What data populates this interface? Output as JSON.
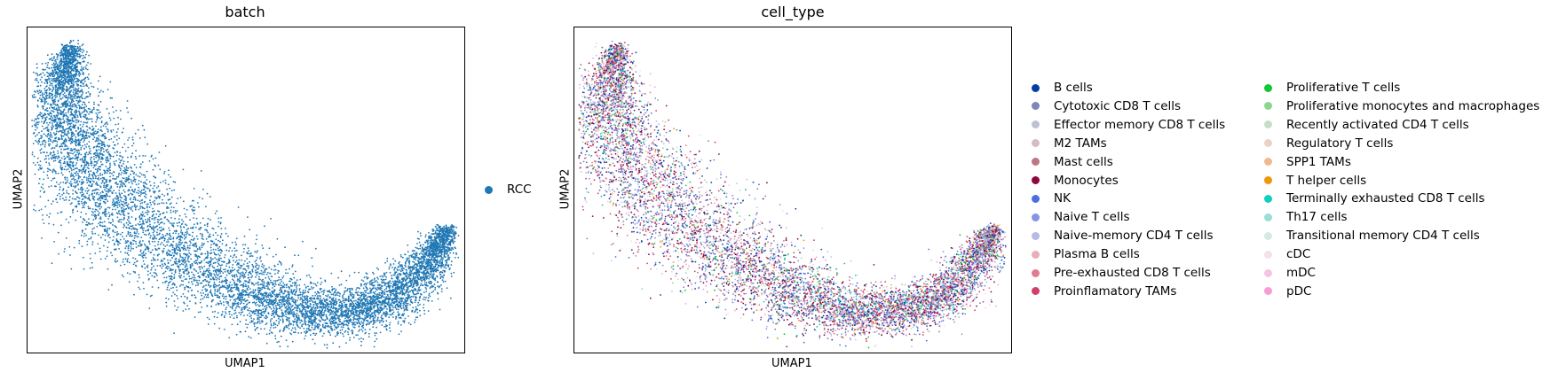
{
  "panels": [
    {
      "title": "batch",
      "xlabel": "UMAP1",
      "ylabel": "UMAP2",
      "legend": [
        {
          "label": "RCC",
          "color": "#1f77b4"
        }
      ]
    },
    {
      "title": "cell_type",
      "xlabel": "UMAP1",
      "ylabel": "UMAP2",
      "legend": [
        {
          "label": "B cells",
          "color": "#023fa5"
        },
        {
          "label": "Cytotoxic CD8 T cells",
          "color": "#7d87b9"
        },
        {
          "label": "Effector memory CD8 T cells",
          "color": "#bec1d4"
        },
        {
          "label": "M2 TAMs",
          "color": "#d6bcc0"
        },
        {
          "label": "Mast cells",
          "color": "#bb7784"
        },
        {
          "label": "Monocytes",
          "color": "#8e063b"
        },
        {
          "label": "NK",
          "color": "#4a6fe3"
        },
        {
          "label": "Naive T cells",
          "color": "#8595e1"
        },
        {
          "label": "Naive-memory CD4 T cells",
          "color": "#b5bbe3"
        },
        {
          "label": "Plasma B cells",
          "color": "#e6afb9"
        },
        {
          "label": "Pre-exhausted CD8 T cells",
          "color": "#e07b91"
        },
        {
          "label": "Proinflamatory TAMs",
          "color": "#d33f6a"
        },
        {
          "label": "Proliferative T cells",
          "color": "#11c638"
        },
        {
          "label": "Proliferative monocytes and macrophages",
          "color": "#8dd593"
        },
        {
          "label": "Recently activated CD4 T cells",
          "color": "#c6dec7"
        },
        {
          "label": "Regulatory T cells",
          "color": "#ead3c6"
        },
        {
          "label": "SPP1 TAMs",
          "color": "#f0b98d"
        },
        {
          "label": "T helper cells",
          "color": "#ef9708"
        },
        {
          "label": "Terminally exhausted CD8 T cells",
          "color": "#0fcfc0"
        },
        {
          "label": "Th17 cells",
          "color": "#9cded6"
        },
        {
          "label": "Transitional memory CD4 T cells",
          "color": "#d5eae7"
        },
        {
          "label": "cDC",
          "color": "#f3e1eb"
        },
        {
          "label": "mDC",
          "color": "#f6c4e1"
        },
        {
          "label": "pDC",
          "color": "#f79cd4"
        }
      ]
    }
  ],
  "chart_data": [
    {
      "type": "scatter",
      "title": "batch",
      "xlabel": "UMAP1",
      "ylabel": "UMAP2",
      "series": [
        {
          "name": "RCC",
          "color": "#1f77b4"
        }
      ],
      "grid": false,
      "legend_position": "right"
    },
    {
      "type": "scatter",
      "title": "cell_type",
      "xlabel": "UMAP1",
      "ylabel": "UMAP2",
      "grid": false,
      "legend_position": "right, two columns"
    }
  ]
}
